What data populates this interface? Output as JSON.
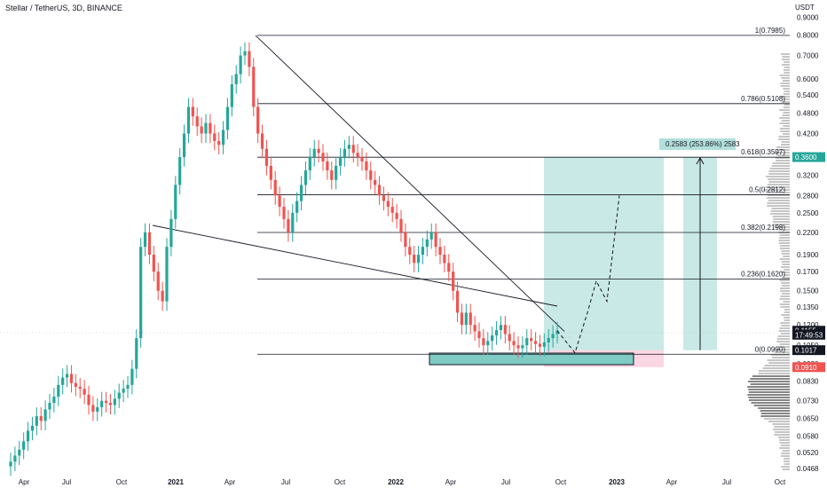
{
  "header": {
    "symbol_title": "Stellar / TetherUS, 3D, BINANCE",
    "currency": "USDT"
  },
  "colors": {
    "up_candle": "#26a69a",
    "down_candle": "#ef5350",
    "line": "#131722",
    "profit_zone": "#b2dfdb",
    "loss_zone": "#f8bbd0",
    "current_price_tag": "#131722",
    "entry_tag": "#131722",
    "target_tag": "#26a69a",
    "stop_tag": "#ef5350"
  },
  "chart_data": {
    "type": "candlestick",
    "scale": "log",
    "x_ticks": [
      "Apr",
      "Jul",
      "Oct",
      "2021",
      "Apr",
      "Jul",
      "Oct",
      "2022",
      "Apr",
      "Jul",
      "Oct",
      "2023",
      "Apr",
      "Jul",
      "Oct"
    ],
    "y_ticks": [
      "0.9000",
      "0.8000",
      "0.7000",
      "0.6000",
      "0.5400",
      "0.4800",
      "0.4200",
      "0.3600",
      "0.3200",
      "0.2800",
      "0.2500",
      "0.2200",
      "0.1900",
      "0.1700",
      "0.1500",
      "0.1350",
      "0.1200",
      "0.1050",
      "0.0930",
      "0.0830",
      "0.0730",
      "0.0650",
      "0.0580",
      "0.0520",
      "0.0468"
    ],
    "y_tick_values": [
      0.9,
      0.8,
      0.7,
      0.6,
      0.54,
      0.48,
      0.42,
      0.36,
      0.32,
      0.28,
      0.25,
      0.22,
      0.19,
      0.17,
      0.15,
      0.135,
      0.12,
      0.105,
      0.093,
      0.083,
      0.073,
      0.065,
      0.058,
      0.052,
      0.0468
    ],
    "y_range": [
      0.045,
      0.95
    ],
    "fib_levels": [
      {
        "label": "1(0.7985)",
        "value": 0.7985
      },
      {
        "label": "0.786(0.5108)",
        "value": 0.5108
      },
      {
        "label": "0.618(0.3597)",
        "value": 0.3597
      },
      {
        "label": "0.5(0.2812)",
        "value": 0.2812
      },
      {
        "label": "0.382(0.2198)",
        "value": 0.2198
      },
      {
        "label": "0.236(0.1620)",
        "value": 0.162
      },
      {
        "label": "0(0.0990)",
        "value": 0.099
      }
    ],
    "price_tags": [
      {
        "label": "0.3600",
        "value": 0.36,
        "kind": "target"
      },
      {
        "label": "0.1155",
        "value": 0.1155,
        "kind": "current"
      },
      {
        "label": "17:49:53",
        "value": 0.1125,
        "kind": "current"
      },
      {
        "label": "0.1017",
        "value": 0.1017,
        "kind": "entry"
      },
      {
        "label": "0.0910",
        "value": 0.091,
        "kind": "stop"
      }
    ],
    "measure_label": "0.2583 (253.86%) 2583",
    "position": {
      "entry": 0.1017,
      "target": 0.36,
      "stop": 0.091
    },
    "price_series": [
      0.049,
      0.051,
      0.053,
      0.056,
      0.06,
      0.062,
      0.066,
      0.064,
      0.069,
      0.072,
      0.075,
      0.081,
      0.085,
      0.087,
      0.082,
      0.08,
      0.079,
      0.076,
      0.071,
      0.068,
      0.07,
      0.073,
      0.072,
      0.071,
      0.074,
      0.077,
      0.079,
      0.081,
      0.09,
      0.11,
      0.2,
      0.22,
      0.19,
      0.17,
      0.15,
      0.14,
      0.2,
      0.24,
      0.3,
      0.36,
      0.42,
      0.5,
      0.47,
      0.44,
      0.42,
      0.45,
      0.42,
      0.4,
      0.39,
      0.43,
      0.5,
      0.58,
      0.62,
      0.7,
      0.72,
      0.65,
      0.5,
      0.42,
      0.38,
      0.34,
      0.31,
      0.28,
      0.26,
      0.24,
      0.22,
      0.25,
      0.27,
      0.3,
      0.33,
      0.36,
      0.38,
      0.37,
      0.35,
      0.33,
      0.31,
      0.34,
      0.36,
      0.38,
      0.39,
      0.37,
      0.36,
      0.35,
      0.33,
      0.31,
      0.3,
      0.28,
      0.27,
      0.26,
      0.25,
      0.24,
      0.22,
      0.2,
      0.19,
      0.18,
      0.19,
      0.2,
      0.21,
      0.22,
      0.2,
      0.19,
      0.18,
      0.17,
      0.15,
      0.13,
      0.12,
      0.13,
      0.12,
      0.115,
      0.11,
      0.105,
      0.108,
      0.112,
      0.116,
      0.12,
      0.113,
      0.108,
      0.105,
      0.103,
      0.105,
      0.11,
      0.108,
      0.106,
      0.104,
      0.107,
      0.11,
      0.113,
      0.1155
    ],
    "projection_path": [
      0.1155,
      0.1,
      0.13,
      0.16,
      0.14,
      0.28
    ],
    "volume_profile_note": ""
  }
}
